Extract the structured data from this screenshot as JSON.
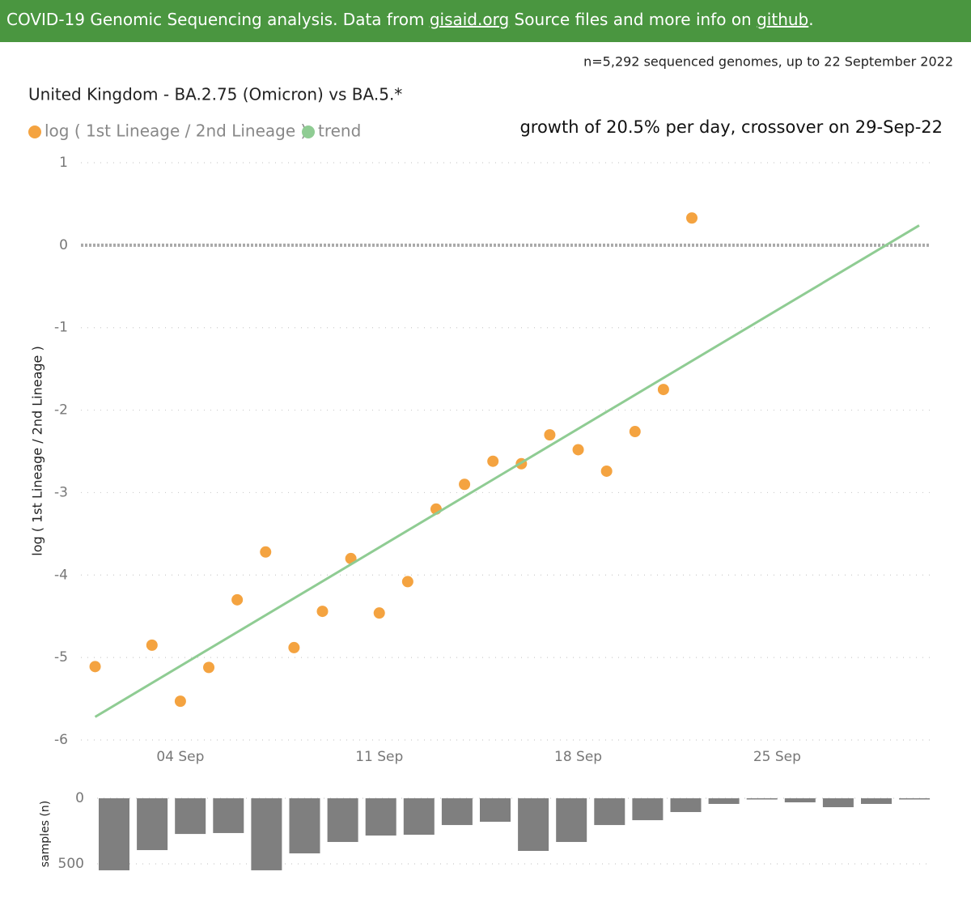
{
  "header": {
    "parts": [
      "COVID-19 Genomic Sequencing analysis. Data from ",
      "gisaid.org",
      " Source files and more info on ",
      "github",
      "."
    ]
  },
  "subtitle": "n=5,292 sequenced genomes, up to 22 September 2022",
  "chart_data": [
    {
      "type": "scatter",
      "title": "United Kingdom - BA.2.75 (Omicron) vs BA.5.*",
      "annotation": "growth of 20.5% per day, crossover on 29-Sep-22",
      "y_label": "log ( 1st Lineage / 2nd Lineage )",
      "xlim": [
        0.5,
        30.4
      ],
      "xticks": [
        {
          "value": 4,
          "label": "04 Sep"
        },
        {
          "value": 11,
          "label": "11 Sep"
        },
        {
          "value": 18,
          "label": "18 Sep"
        },
        {
          "value": 25,
          "label": "25 Sep"
        }
      ],
      "ylim": [
        -6,
        1
      ],
      "yticks": [
        -6,
        -5,
        -4,
        -3,
        -2,
        -1,
        0,
        1
      ],
      "grid": true,
      "series": [
        {
          "name": "log ( 1st Lineage / 2nd Lineage )",
          "color": "#f4a340",
          "mode": "points",
          "x": [
            1,
            3,
            4,
            5,
            6,
            7,
            8,
            9,
            10,
            11,
            12,
            13,
            14,
            15,
            16,
            17,
            18,
            19,
            20,
            21,
            22
          ],
          "values": [
            -5.11,
            -4.85,
            -5.53,
            -5.12,
            -4.3,
            -3.72,
            -4.88,
            -4.44,
            -3.8,
            -4.46,
            -4.08,
            -3.2,
            -2.9,
            -2.62,
            -2.65,
            -2.3,
            -2.48,
            -2.74,
            -2.26,
            -1.75,
            0.33
          ]
        },
        {
          "name": "trend",
          "color": "#8fcc93",
          "mode": "line",
          "x": [
            1,
            30
          ],
          "values": [
            -5.72,
            0.24
          ]
        }
      ]
    },
    {
      "type": "bar",
      "y_label": "samples (n)",
      "color": "#7f7f7f",
      "inverted": true,
      "ylim": [
        0,
        580
      ],
      "yticks": [
        0,
        500
      ],
      "grid": true,
      "values": [
        549,
        395,
        272,
        265,
        549,
        420,
        333,
        284,
        278,
        204,
        179,
        401,
        333,
        204,
        167,
        105,
        43,
        6,
        31,
        68,
        43,
        6
      ]
    }
  ]
}
